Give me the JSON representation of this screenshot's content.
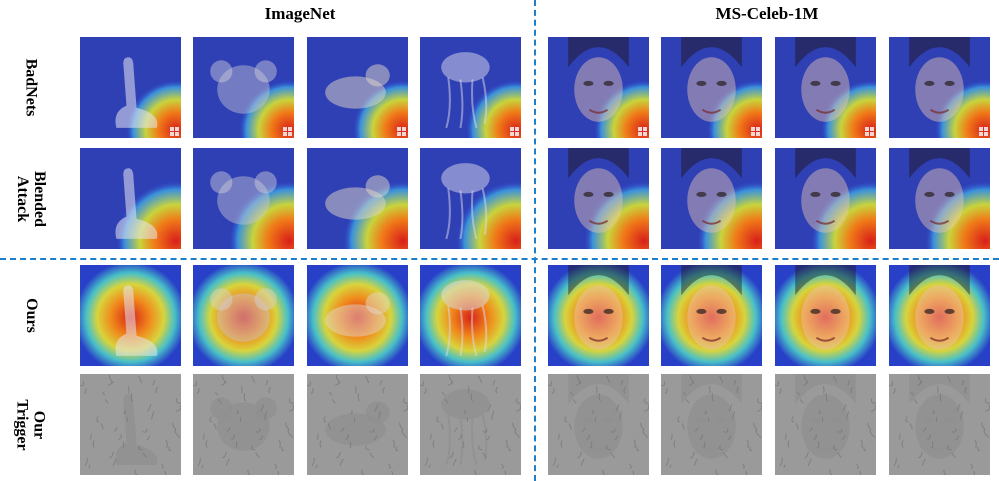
{
  "columns": {
    "left": "ImageNet",
    "right": "MS-Celeb-1M"
  },
  "rows": [
    {
      "label": "BadNets",
      "kind": "badnets"
    },
    {
      "label": "Blended\nAttack",
      "kind": "blended"
    },
    {
      "label": "Ours",
      "kind": "ours"
    },
    {
      "label": "Our\nTrigger",
      "kind": "trigger"
    }
  ],
  "images": {
    "imagenet": [
      "swan",
      "koala",
      "dog",
      "jellyfish"
    ],
    "msceleb": [
      "woman-1",
      "woman-2",
      "man-1",
      "man-2"
    ]
  },
  "colors": {
    "divider": "#1e7fc8",
    "heat_low": "#2a3fd6",
    "heat_high": "#e0281c"
  }
}
